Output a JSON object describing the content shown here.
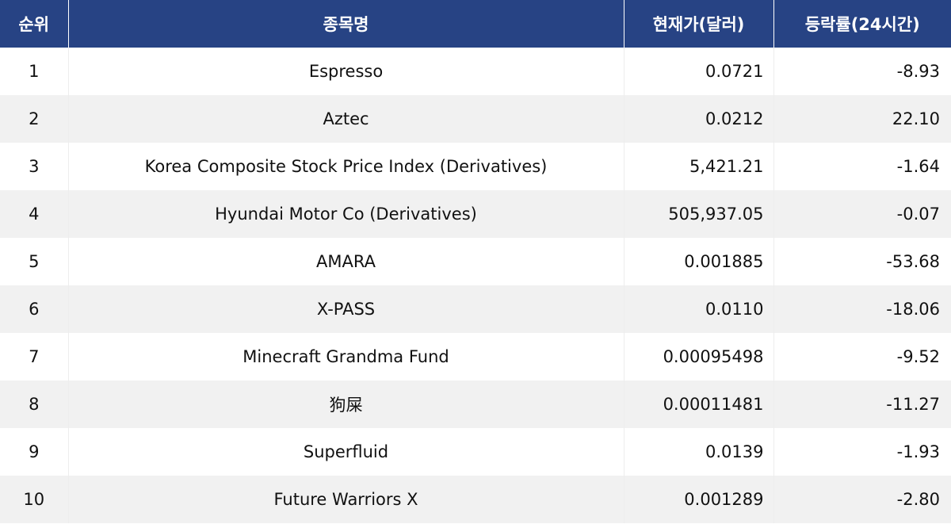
{
  "table": {
    "headers": {
      "rank": "순위",
      "name": "종목명",
      "price": "현재가(달러)",
      "change": "등락률(24시간)"
    },
    "rows": [
      {
        "rank": "1",
        "name": "Espresso",
        "price": "0.0721",
        "change": "-8.93"
      },
      {
        "rank": "2",
        "name": "Aztec",
        "price": "0.0212",
        "change": "22.10"
      },
      {
        "rank": "3",
        "name": "Korea Composite Stock Price Index (Derivatives)",
        "price": "5,421.21",
        "change": "-1.64"
      },
      {
        "rank": "4",
        "name": "Hyundai Motor Co (Derivatives)",
        "price": "505,937.05",
        "change": "-0.07"
      },
      {
        "rank": "5",
        "name": "AMARA",
        "price": "0.001885",
        "change": "-53.68"
      },
      {
        "rank": "6",
        "name": "X-PASS",
        "price": "0.0110",
        "change": "-18.06"
      },
      {
        "rank": "7",
        "name": "Minecraft Grandma Fund",
        "price": "0.00095498",
        "change": "-9.52"
      },
      {
        "rank": "8",
        "name": "狗屎",
        "price": "0.00011481",
        "change": "-11.27"
      },
      {
        "rank": "9",
        "name": "Superfluid",
        "price": "0.0139",
        "change": "-1.93"
      },
      {
        "rank": "10",
        "name": "Future Warriors X",
        "price": "0.001289",
        "change": "-2.80"
      }
    ]
  },
  "colors": {
    "header_bg": "#274384",
    "header_text": "#ffffff",
    "row_alt_bg": "#f1f1f1"
  }
}
